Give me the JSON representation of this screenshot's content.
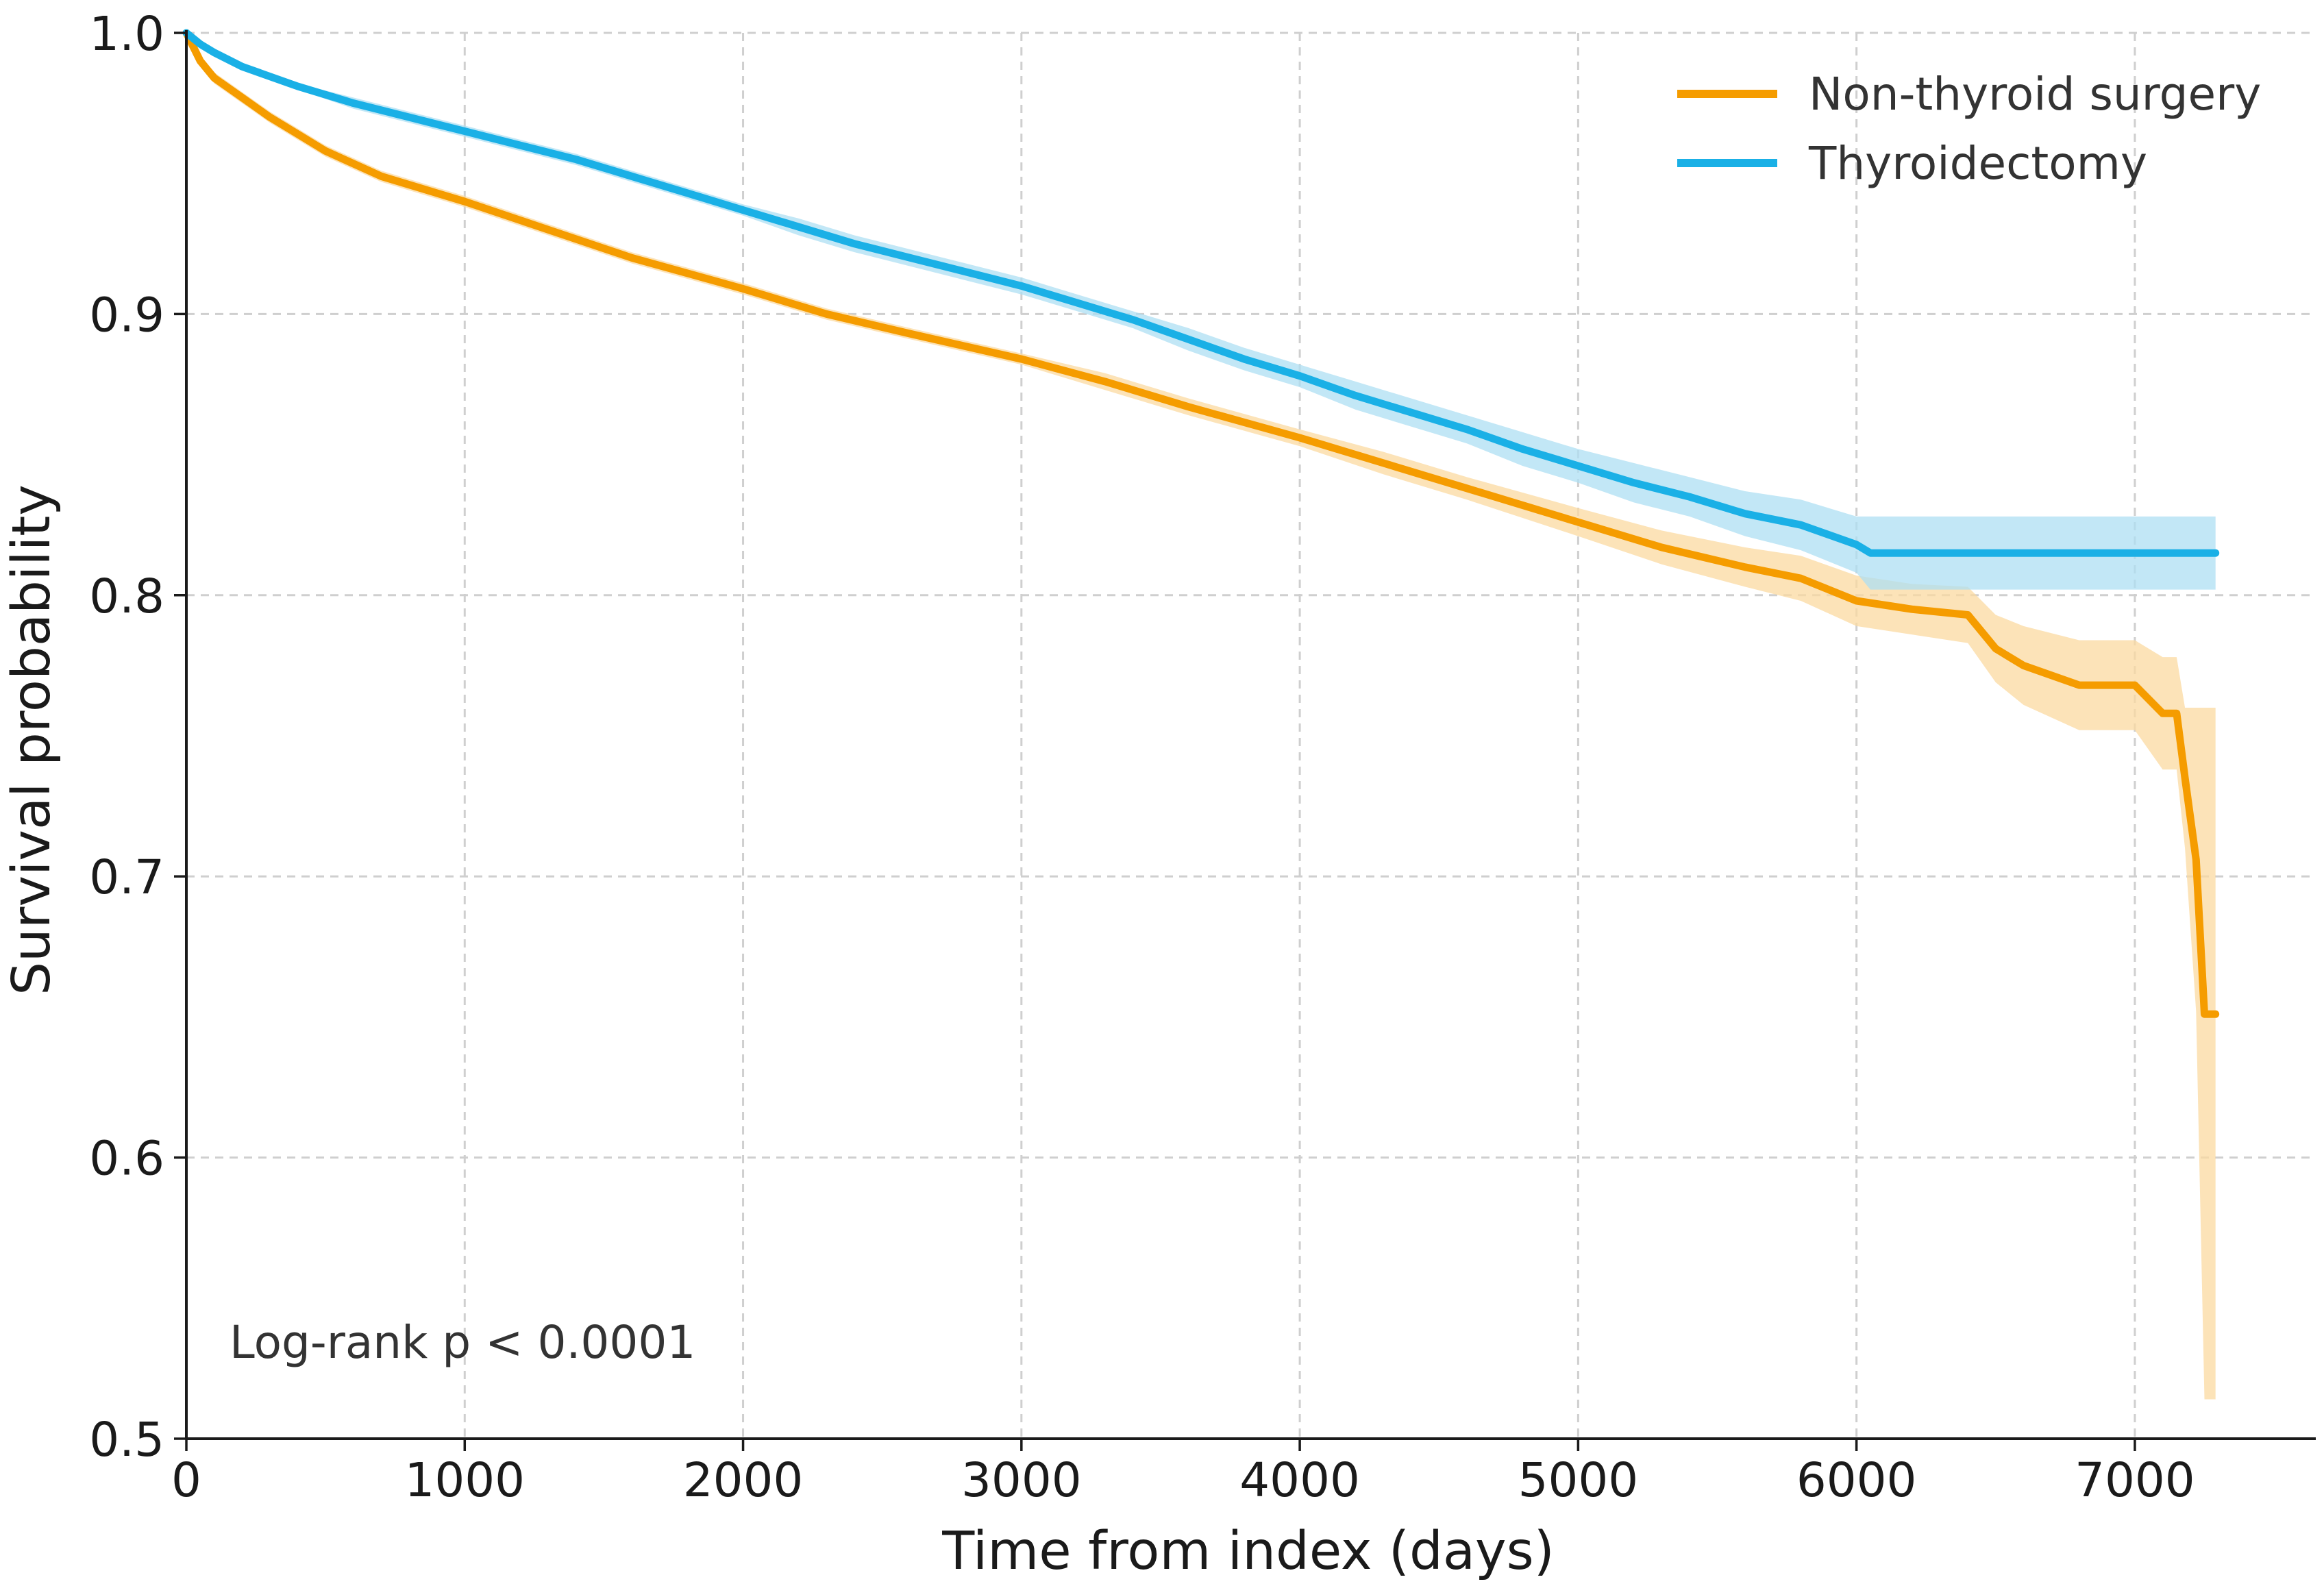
{
  "chart_data": {
    "type": "line",
    "title": "",
    "xlabel": "Time from index (days)",
    "ylabel": "Survival probability",
    "xlim": [
      0,
      7650
    ],
    "ylim": [
      0.5,
      1.0
    ],
    "xticks": [
      0,
      1000,
      2000,
      3000,
      4000,
      5000,
      6000,
      7000
    ],
    "xtick_labels": [
      "0",
      "1000",
      "2000",
      "3000",
      "4000",
      "5000",
      "6000",
      "7000"
    ],
    "yticks": [
      0.5,
      0.6,
      0.7,
      0.8,
      0.9,
      1.0
    ],
    "ytick_labels": [
      "0.5",
      "0.6",
      "0.7",
      "0.8",
      "0.9",
      "1.0"
    ],
    "grid": true,
    "legend_position": "top-right",
    "annotation": "Log-rank p < 0.0001",
    "series": [
      {
        "name": "Non-thyroid surgery",
        "color": "#F59C00",
        "band_color": "#FBD9A0",
        "step": false,
        "x": [
          0,
          50,
          100,
          200,
          300,
          400,
          500,
          700,
          1000,
          1300,
          1600,
          2000,
          2300,
          2600,
          3000,
          3300,
          3600,
          4000,
          4300,
          4600,
          5000,
          5300,
          5600,
          5800,
          6000,
          6200,
          6400,
          6500,
          6600,
          6800,
          7000,
          7100,
          7150,
          7180,
          7220,
          7250,
          7290
        ],
        "y": [
          1.0,
          0.99,
          0.984,
          0.977,
          0.97,
          0.964,
          0.958,
          0.949,
          0.94,
          0.93,
          0.92,
          0.909,
          0.9,
          0.893,
          0.884,
          0.876,
          0.867,
          0.856,
          0.847,
          0.838,
          0.826,
          0.817,
          0.81,
          0.806,
          0.798,
          0.795,
          0.793,
          0.781,
          0.775,
          0.768,
          0.768,
          0.758,
          0.758,
          0.735,
          0.706,
          0.651,
          0.651
        ],
        "ci_upper": [
          1.0,
          0.992,
          0.986,
          0.979,
          0.972,
          0.966,
          0.96,
          0.951,
          0.942,
          0.932,
          0.922,
          0.911,
          0.902,
          0.895,
          0.886,
          0.879,
          0.87,
          0.859,
          0.851,
          0.842,
          0.831,
          0.823,
          0.817,
          0.814,
          0.807,
          0.804,
          0.803,
          0.793,
          0.789,
          0.784,
          0.784,
          0.778,
          0.778,
          0.76,
          0.76,
          0.76,
          0.76
        ],
        "ci_lower": [
          1.0,
          0.988,
          0.982,
          0.975,
          0.968,
          0.962,
          0.956,
          0.947,
          0.938,
          0.928,
          0.918,
          0.907,
          0.898,
          0.891,
          0.882,
          0.873,
          0.864,
          0.853,
          0.843,
          0.834,
          0.821,
          0.811,
          0.803,
          0.798,
          0.789,
          0.786,
          0.783,
          0.769,
          0.761,
          0.752,
          0.752,
          0.738,
          0.738,
          0.71,
          0.652,
          0.514,
          0.514
        ]
      },
      {
        "name": "Thyroidectomy",
        "color": "#1AB0E6",
        "band_color": "#AEDFF3",
        "step": false,
        "x": [
          0,
          50,
          100,
          200,
          400,
          600,
          800,
          1000,
          1200,
          1400,
          1600,
          1800,
          2000,
          2200,
          2400,
          2600,
          2800,
          3000,
          3200,
          3400,
          3600,
          3800,
          4000,
          4200,
          4400,
          4600,
          4800,
          5000,
          5200,
          5400,
          5600,
          5800,
          6000,
          6050,
          6400,
          7000,
          7290
        ],
        "y": [
          1.0,
          0.996,
          0.993,
          0.988,
          0.981,
          0.975,
          0.97,
          0.965,
          0.96,
          0.955,
          0.949,
          0.943,
          0.937,
          0.931,
          0.925,
          0.92,
          0.915,
          0.91,
          0.904,
          0.898,
          0.891,
          0.884,
          0.878,
          0.871,
          0.865,
          0.859,
          0.852,
          0.846,
          0.84,
          0.835,
          0.829,
          0.825,
          0.818,
          0.815,
          0.815,
          0.815,
          0.815
        ],
        "ci_upper": [
          1.0,
          0.997,
          0.994,
          0.989,
          0.982,
          0.977,
          0.972,
          0.967,
          0.962,
          0.957,
          0.951,
          0.945,
          0.939,
          0.934,
          0.928,
          0.923,
          0.918,
          0.913,
          0.907,
          0.901,
          0.895,
          0.888,
          0.882,
          0.876,
          0.87,
          0.864,
          0.858,
          0.852,
          0.847,
          0.842,
          0.837,
          0.834,
          0.828,
          0.828,
          0.828,
          0.828,
          0.828
        ],
        "ci_lower": [
          1.0,
          0.995,
          0.992,
          0.987,
          0.98,
          0.973,
          0.968,
          0.963,
          0.958,
          0.953,
          0.947,
          0.941,
          0.935,
          0.928,
          0.922,
          0.917,
          0.912,
          0.907,
          0.901,
          0.895,
          0.887,
          0.88,
          0.874,
          0.866,
          0.86,
          0.854,
          0.846,
          0.84,
          0.833,
          0.828,
          0.821,
          0.816,
          0.808,
          0.802,
          0.802,
          0.802,
          0.802
        ]
      }
    ]
  }
}
